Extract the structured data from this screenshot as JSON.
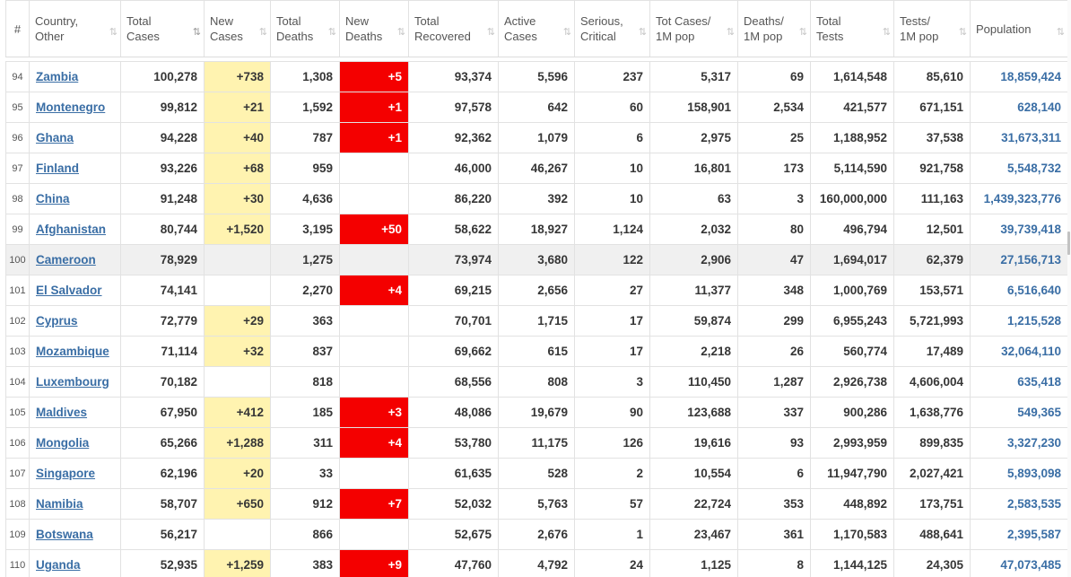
{
  "headers": [
    {
      "key": "rank",
      "lines": [
        "#"
      ]
    },
    {
      "key": "country",
      "lines": [
        "Country,",
        "Other"
      ]
    },
    {
      "key": "total_cases",
      "lines": [
        "Total",
        "Cases"
      ]
    },
    {
      "key": "new_cases",
      "lines": [
        "New",
        "Cases"
      ]
    },
    {
      "key": "total_deaths",
      "lines": [
        "Total",
        "Deaths"
      ]
    },
    {
      "key": "new_deaths",
      "lines": [
        "New",
        "Deaths"
      ]
    },
    {
      "key": "total_recovered",
      "lines": [
        "Total",
        "Recovered"
      ]
    },
    {
      "key": "active_cases",
      "lines": [
        "Active",
        "Cases"
      ]
    },
    {
      "key": "serious_critical",
      "lines": [
        "Serious,",
        "Critical"
      ]
    },
    {
      "key": "cases_per_1m",
      "lines": [
        "Tot Cases/",
        "1M pop"
      ]
    },
    {
      "key": "deaths_per_1m",
      "lines": [
        "Deaths/",
        "1M pop"
      ]
    },
    {
      "key": "total_tests",
      "lines": [
        "Total",
        "Tests"
      ]
    },
    {
      "key": "tests_per_1m",
      "lines": [
        "Tests/",
        "1M pop"
      ]
    },
    {
      "key": "population",
      "lines": [
        "Population"
      ]
    }
  ],
  "sort_icon": "⇅",
  "colors": {
    "new_cases_bg": "#fff3b0",
    "new_deaths_bg": "#f40000",
    "link": "#3a6ea5"
  },
  "rows": [
    {
      "rank": "94",
      "country": "Zambia",
      "total_cases": "100,278",
      "new_cases": "+738",
      "total_deaths": "1,308",
      "new_deaths": "+5",
      "total_recovered": "93,374",
      "active_cases": "5,596",
      "serious_critical": "237",
      "cases_per_1m": "5,317",
      "deaths_per_1m": "69",
      "total_tests": "1,614,548",
      "tests_per_1m": "85,610",
      "population": "18,859,424"
    },
    {
      "rank": "95",
      "country": "Montenegro",
      "total_cases": "99,812",
      "new_cases": "+21",
      "total_deaths": "1,592",
      "new_deaths": "+1",
      "total_recovered": "97,578",
      "active_cases": "642",
      "serious_critical": "60",
      "cases_per_1m": "158,901",
      "deaths_per_1m": "2,534",
      "total_tests": "421,577",
      "tests_per_1m": "671,151",
      "population": "628,140"
    },
    {
      "rank": "96",
      "country": "Ghana",
      "total_cases": "94,228",
      "new_cases": "+40",
      "total_deaths": "787",
      "new_deaths": "+1",
      "total_recovered": "92,362",
      "active_cases": "1,079",
      "serious_critical": "6",
      "cases_per_1m": "2,975",
      "deaths_per_1m": "25",
      "total_tests": "1,188,952",
      "tests_per_1m": "37,538",
      "population": "31,673,311"
    },
    {
      "rank": "97",
      "country": "Finland",
      "total_cases": "93,226",
      "new_cases": "+68",
      "total_deaths": "959",
      "new_deaths": "",
      "total_recovered": "46,000",
      "active_cases": "46,267",
      "serious_critical": "10",
      "cases_per_1m": "16,801",
      "deaths_per_1m": "173",
      "total_tests": "5,114,590",
      "tests_per_1m": "921,758",
      "population": "5,548,732"
    },
    {
      "rank": "98",
      "country": "China",
      "total_cases": "91,248",
      "new_cases": "+30",
      "total_deaths": "4,636",
      "new_deaths": "",
      "total_recovered": "86,220",
      "active_cases": "392",
      "serious_critical": "10",
      "cases_per_1m": "63",
      "deaths_per_1m": "3",
      "total_tests": "160,000,000",
      "tests_per_1m": "111,163",
      "population": "1,439,323,776"
    },
    {
      "rank": "99",
      "country": "Afghanistan",
      "total_cases": "80,744",
      "new_cases": "+1,520",
      "total_deaths": "3,195",
      "new_deaths": "+50",
      "total_recovered": "58,622",
      "active_cases": "18,927",
      "serious_critical": "1,124",
      "cases_per_1m": "2,032",
      "deaths_per_1m": "80",
      "total_tests": "496,794",
      "tests_per_1m": "12,501",
      "population": "39,739,418"
    },
    {
      "rank": "100",
      "country": "Cameroon",
      "total_cases": "78,929",
      "new_cases": "",
      "total_deaths": "1,275",
      "new_deaths": "",
      "total_recovered": "73,974",
      "active_cases": "3,680",
      "serious_critical": "122",
      "cases_per_1m": "2,906",
      "deaths_per_1m": "47",
      "total_tests": "1,694,017",
      "tests_per_1m": "62,379",
      "population": "27,156,713"
    },
    {
      "rank": "101",
      "country": "El Salvador",
      "total_cases": "74,141",
      "new_cases": "",
      "total_deaths": "2,270",
      "new_deaths": "+4",
      "total_recovered": "69,215",
      "active_cases": "2,656",
      "serious_critical": "27",
      "cases_per_1m": "11,377",
      "deaths_per_1m": "348",
      "total_tests": "1,000,769",
      "tests_per_1m": "153,571",
      "population": "6,516,640"
    },
    {
      "rank": "102",
      "country": "Cyprus",
      "total_cases": "72,779",
      "new_cases": "+29",
      "total_deaths": "363",
      "new_deaths": "",
      "total_recovered": "70,701",
      "active_cases": "1,715",
      "serious_critical": "17",
      "cases_per_1m": "59,874",
      "deaths_per_1m": "299",
      "total_tests": "6,955,243",
      "tests_per_1m": "5,721,993",
      "population": "1,215,528"
    },
    {
      "rank": "103",
      "country": "Mozambique",
      "total_cases": "71,114",
      "new_cases": "+32",
      "total_deaths": "837",
      "new_deaths": "",
      "total_recovered": "69,662",
      "active_cases": "615",
      "serious_critical": "17",
      "cases_per_1m": "2,218",
      "deaths_per_1m": "26",
      "total_tests": "560,774",
      "tests_per_1m": "17,489",
      "population": "32,064,110"
    },
    {
      "rank": "104",
      "country": "Luxembourg",
      "total_cases": "70,182",
      "new_cases": "",
      "total_deaths": "818",
      "new_deaths": "",
      "total_recovered": "68,556",
      "active_cases": "808",
      "serious_critical": "3",
      "cases_per_1m": "110,450",
      "deaths_per_1m": "1,287",
      "total_tests": "2,926,738",
      "tests_per_1m": "4,606,004",
      "population": "635,418"
    },
    {
      "rank": "105",
      "country": "Maldives",
      "total_cases": "67,950",
      "new_cases": "+412",
      "total_deaths": "185",
      "new_deaths": "+3",
      "total_recovered": "48,086",
      "active_cases": "19,679",
      "serious_critical": "90",
      "cases_per_1m": "123,688",
      "deaths_per_1m": "337",
      "total_tests": "900,286",
      "tests_per_1m": "1,638,776",
      "population": "549,365"
    },
    {
      "rank": "106",
      "country": "Mongolia",
      "total_cases": "65,266",
      "new_cases": "+1,288",
      "total_deaths": "311",
      "new_deaths": "+4",
      "total_recovered": "53,780",
      "active_cases": "11,175",
      "serious_critical": "126",
      "cases_per_1m": "19,616",
      "deaths_per_1m": "93",
      "total_tests": "2,993,959",
      "tests_per_1m": "899,835",
      "population": "3,327,230"
    },
    {
      "rank": "107",
      "country": "Singapore",
      "total_cases": "62,196",
      "new_cases": "+20",
      "total_deaths": "33",
      "new_deaths": "",
      "total_recovered": "61,635",
      "active_cases": "528",
      "serious_critical": "2",
      "cases_per_1m": "10,554",
      "deaths_per_1m": "6",
      "total_tests": "11,947,790",
      "tests_per_1m": "2,027,421",
      "population": "5,893,098"
    },
    {
      "rank": "108",
      "country": "Namibia",
      "total_cases": "58,707",
      "new_cases": "+650",
      "total_deaths": "912",
      "new_deaths": "+7",
      "total_recovered": "52,032",
      "active_cases": "5,763",
      "serious_critical": "57",
      "cases_per_1m": "22,724",
      "deaths_per_1m": "353",
      "total_tests": "448,892",
      "tests_per_1m": "173,751",
      "population": "2,583,535"
    },
    {
      "rank": "109",
      "country": "Botswana",
      "total_cases": "56,217",
      "new_cases": "",
      "total_deaths": "866",
      "new_deaths": "",
      "total_recovered": "52,675",
      "active_cases": "2,676",
      "serious_critical": "1",
      "cases_per_1m": "23,467",
      "deaths_per_1m": "361",
      "total_tests": "1,170,583",
      "tests_per_1m": "488,641",
      "population": "2,395,587"
    },
    {
      "rank": "110",
      "country": "Uganda",
      "total_cases": "52,935",
      "new_cases": "+1,259",
      "total_deaths": "383",
      "new_deaths": "+9",
      "total_recovered": "47,760",
      "active_cases": "4,792",
      "serious_critical": "24",
      "cases_per_1m": "1,125",
      "deaths_per_1m": "8",
      "total_tests": "1,144,125",
      "tests_per_1m": "24,305",
      "population": "47,073,485"
    }
  ]
}
